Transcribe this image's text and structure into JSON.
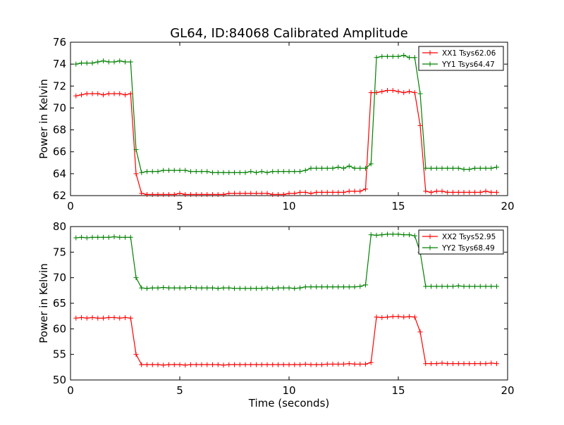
{
  "chart_data": [
    {
      "type": "line",
      "title": "GL64, ID:84068 Calibrated Amplitude",
      "xlabel": "",
      "ylabel": "Power in Kelvin",
      "xlim": [
        0,
        20
      ],
      "ylim": [
        62,
        76
      ],
      "x_ticks": [
        "0",
        "5",
        "10",
        "15",
        "20"
      ],
      "y_ticks": [
        "62",
        "64",
        "66",
        "68",
        "70",
        "72",
        "74",
        "76"
      ],
      "legend_position": "top-right",
      "series": [
        {
          "name": "XX1 Tsys62.06",
          "color": "#ff0000",
          "x": [
            0.25,
            0.5,
            0.75,
            1.0,
            1.25,
            1.5,
            1.75,
            2.0,
            2.25,
            2.5,
            2.75,
            3.0,
            3.25,
            3.5,
            3.75,
            4.0,
            4.25,
            4.5,
            4.75,
            5.0,
            5.25,
            5.5,
            5.75,
            6.0,
            6.25,
            6.5,
            6.75,
            7.0,
            7.25,
            7.5,
            7.75,
            8.0,
            8.25,
            8.5,
            8.75,
            9.0,
            9.25,
            9.5,
            9.75,
            10.0,
            10.25,
            10.5,
            10.75,
            11.0,
            11.25,
            11.5,
            11.75,
            12.0,
            12.25,
            12.5,
            12.75,
            13.0,
            13.25,
            13.5,
            13.75,
            14.0,
            14.25,
            14.5,
            14.75,
            15.0,
            15.25,
            15.5,
            15.75,
            16.0,
            16.25,
            16.5,
            16.75,
            17.0,
            17.25,
            17.5,
            17.75,
            18.0,
            18.25,
            18.5,
            18.75,
            19.0,
            19.25,
            19.5
          ],
          "values": [
            71.1,
            71.2,
            71.3,
            71.3,
            71.3,
            71.2,
            71.3,
            71.3,
            71.3,
            71.2,
            71.3,
            64.0,
            62.2,
            62.1,
            62.1,
            62.1,
            62.1,
            62.1,
            62.1,
            62.2,
            62.1,
            62.1,
            62.1,
            62.1,
            62.1,
            62.1,
            62.1,
            62.1,
            62.2,
            62.2,
            62.2,
            62.2,
            62.2,
            62.2,
            62.2,
            62.2,
            62.1,
            62.1,
            62.1,
            62.2,
            62.2,
            62.3,
            62.3,
            62.2,
            62.3,
            62.3,
            62.3,
            62.3,
            62.3,
            62.3,
            62.4,
            62.4,
            62.4,
            62.6,
            71.4,
            71.4,
            71.5,
            71.6,
            71.6,
            71.5,
            71.4,
            71.5,
            71.4,
            68.4,
            62.4,
            62.3,
            62.4,
            62.4,
            62.3,
            62.3,
            62.3,
            62.3,
            62.3,
            62.3,
            62.3,
            62.4,
            62.3,
            62.3
          ]
        },
        {
          "name": "YY1 Tsys64.47",
          "color": "#008000",
          "x": [
            0.25,
            0.5,
            0.75,
            1.0,
            1.25,
            1.5,
            1.75,
            2.0,
            2.25,
            2.5,
            2.75,
            3.0,
            3.25,
            3.5,
            3.75,
            4.0,
            4.25,
            4.5,
            4.75,
            5.0,
            5.25,
            5.5,
            5.75,
            6.0,
            6.25,
            6.5,
            6.75,
            7.0,
            7.25,
            7.5,
            7.75,
            8.0,
            8.25,
            8.5,
            8.75,
            9.0,
            9.25,
            9.5,
            9.75,
            10.0,
            10.25,
            10.5,
            10.75,
            11.0,
            11.25,
            11.5,
            11.75,
            12.0,
            12.25,
            12.5,
            12.75,
            13.0,
            13.25,
            13.5,
            13.75,
            14.0,
            14.25,
            14.5,
            14.75,
            15.0,
            15.25,
            15.5,
            15.75,
            16.0,
            16.25,
            16.5,
            16.75,
            17.0,
            17.25,
            17.5,
            17.75,
            18.0,
            18.25,
            18.5,
            18.75,
            19.0,
            19.25,
            19.5
          ],
          "values": [
            74.0,
            74.1,
            74.1,
            74.1,
            74.2,
            74.3,
            74.2,
            74.2,
            74.3,
            74.2,
            74.2,
            66.2,
            64.1,
            64.2,
            64.2,
            64.2,
            64.3,
            64.3,
            64.3,
            64.3,
            64.3,
            64.2,
            64.2,
            64.2,
            64.2,
            64.1,
            64.1,
            64.1,
            64.1,
            64.1,
            64.1,
            64.1,
            64.2,
            64.1,
            64.2,
            64.1,
            64.2,
            64.2,
            64.2,
            64.2,
            64.2,
            64.2,
            64.3,
            64.5,
            64.5,
            64.5,
            64.5,
            64.5,
            64.6,
            64.5,
            64.7,
            64.5,
            64.5,
            64.5,
            64.9,
            74.6,
            74.7,
            74.7,
            74.7,
            74.7,
            74.8,
            74.6,
            74.6,
            71.3,
            64.5,
            64.5,
            64.5,
            64.5,
            64.5,
            64.5,
            64.5,
            64.4,
            64.4,
            64.5,
            64.5,
            64.5,
            64.5,
            64.6
          ]
        }
      ]
    },
    {
      "type": "line",
      "title": "",
      "xlabel": "Time (seconds)",
      "ylabel": "Power in Kelvin",
      "xlim": [
        0,
        20
      ],
      "ylim": [
        50,
        80
      ],
      "x_ticks": [
        "0",
        "5",
        "10",
        "15",
        "20"
      ],
      "y_ticks": [
        "50",
        "55",
        "60",
        "65",
        "70",
        "75",
        "80"
      ],
      "legend_position": "top-right",
      "series": [
        {
          "name": "XX2 Tsys52.95",
          "color": "#ff0000",
          "x": [
            0.25,
            0.5,
            0.75,
            1.0,
            1.25,
            1.5,
            1.75,
            2.0,
            2.25,
            2.5,
            2.75,
            3.0,
            3.25,
            3.5,
            3.75,
            4.0,
            4.25,
            4.5,
            4.75,
            5.0,
            5.25,
            5.5,
            5.75,
            6.0,
            6.25,
            6.5,
            6.75,
            7.0,
            7.25,
            7.5,
            7.75,
            8.0,
            8.25,
            8.5,
            8.75,
            9.0,
            9.25,
            9.5,
            9.75,
            10.0,
            10.25,
            10.5,
            10.75,
            11.0,
            11.25,
            11.5,
            11.75,
            12.0,
            12.25,
            12.5,
            12.75,
            13.0,
            13.25,
            13.5,
            13.75,
            14.0,
            14.25,
            14.5,
            14.75,
            15.0,
            15.25,
            15.5,
            15.75,
            16.0,
            16.25,
            16.5,
            16.75,
            17.0,
            17.25,
            17.5,
            17.75,
            18.0,
            18.25,
            18.5,
            18.75,
            19.0,
            19.25,
            19.5
          ],
          "values": [
            62.1,
            62.2,
            62.1,
            62.2,
            62.1,
            62.1,
            62.2,
            62.2,
            62.1,
            62.2,
            62.1,
            55.0,
            53.0,
            53.0,
            53.0,
            53.0,
            52.9,
            53.0,
            53.0,
            53.0,
            52.9,
            53.0,
            53.0,
            53.0,
            53.0,
            53.0,
            53.0,
            52.9,
            53.0,
            53.0,
            53.0,
            53.0,
            53.0,
            53.0,
            53.0,
            53.0,
            53.0,
            53.0,
            53.0,
            53.0,
            53.0,
            53.0,
            53.1,
            53.0,
            53.0,
            53.0,
            53.1,
            53.1,
            53.1,
            53.1,
            53.2,
            53.1,
            53.1,
            53.1,
            53.4,
            62.3,
            62.2,
            62.3,
            62.4,
            62.4,
            62.3,
            62.4,
            62.3,
            59.4,
            53.2,
            53.2,
            53.2,
            53.3,
            53.2,
            53.2,
            53.2,
            53.2,
            53.2,
            53.2,
            53.2,
            53.2,
            53.3,
            53.2
          ]
        },
        {
          "name": "YY2 Tsys68.49",
          "color": "#008000",
          "x": [
            0.25,
            0.5,
            0.75,
            1.0,
            1.25,
            1.5,
            1.75,
            2.0,
            2.25,
            2.5,
            2.75,
            3.0,
            3.25,
            3.5,
            3.75,
            4.0,
            4.25,
            4.5,
            4.75,
            5.0,
            5.25,
            5.5,
            5.75,
            6.0,
            6.25,
            6.5,
            6.75,
            7.0,
            7.25,
            7.5,
            7.75,
            8.0,
            8.25,
            8.5,
            8.75,
            9.0,
            9.25,
            9.5,
            9.75,
            10.0,
            10.25,
            10.5,
            10.75,
            11.0,
            11.25,
            11.5,
            11.75,
            12.0,
            12.25,
            12.5,
            12.75,
            13.0,
            13.25,
            13.5,
            13.75,
            14.0,
            14.25,
            14.5,
            14.75,
            15.0,
            15.25,
            15.5,
            15.75,
            16.0,
            16.25,
            16.5,
            16.75,
            17.0,
            17.25,
            17.5,
            17.75,
            18.0,
            18.25,
            18.5,
            18.75,
            19.0,
            19.25,
            19.5
          ],
          "values": [
            77.8,
            77.9,
            77.8,
            77.9,
            77.9,
            77.9,
            77.9,
            78.0,
            77.9,
            77.9,
            77.9,
            70.0,
            68.0,
            67.9,
            68.0,
            68.0,
            68.1,
            68.0,
            68.0,
            68.0,
            68.0,
            68.1,
            68.0,
            68.0,
            68.0,
            68.0,
            67.9,
            68.0,
            68.0,
            67.9,
            67.9,
            67.9,
            67.9,
            67.9,
            67.9,
            68.0,
            67.9,
            68.0,
            68.0,
            68.0,
            67.9,
            68.0,
            68.2,
            68.2,
            68.2,
            68.2,
            68.2,
            68.2,
            68.2,
            68.2,
            68.2,
            68.2,
            68.3,
            68.6,
            78.4,
            78.3,
            78.4,
            78.5,
            78.5,
            78.5,
            78.4,
            78.4,
            78.2,
            75.0,
            68.3,
            68.3,
            68.3,
            68.3,
            68.3,
            68.3,
            68.4,
            68.3,
            68.3,
            68.3,
            68.3,
            68.3,
            68.3,
            68.3
          ]
        }
      ]
    }
  ]
}
